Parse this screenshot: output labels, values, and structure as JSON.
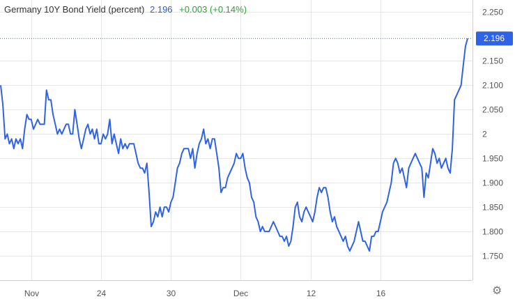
{
  "header": {
    "title": "Germany 10Y Bond Yield (percent)",
    "last_value": "2.196",
    "change": "+0.003 (+0.14%)"
  },
  "colors": {
    "line": "#2f63e6",
    "up": "#2ea03a",
    "grid": "#e6e6e6",
    "axis_text": "#555555",
    "badge_bg": "#2f63e6"
  },
  "icons": {
    "settings": "gear-icon"
  },
  "chart_data": {
    "type": "line",
    "title": "Germany 10Y Bond Yield (percent)",
    "xlabel": "",
    "ylabel": "",
    "ylim": [
      1.7,
      2.275
    ],
    "y_ticks": [
      1.75,
      1.8,
      1.85,
      1.9,
      1.95,
      2.0,
      2.05,
      2.1,
      2.15,
      2.25
    ],
    "y_tick_labels": [
      "1.750",
      "1.800",
      "1.850",
      "1.900",
      "1.950",
      "2",
      "2.050",
      "2.100",
      "2.150",
      "2.250"
    ],
    "x_ticks": [
      {
        "label": "Nov",
        "index": 14
      },
      {
        "label": "24",
        "index": 46
      },
      {
        "label": "30",
        "index": 78
      },
      {
        "label": "Dec",
        "index": 110
      },
      {
        "label": "12",
        "index": 142
      },
      {
        "label": "16",
        "index": 174
      }
    ],
    "last_value_label": "2.196",
    "last_value": 2.196,
    "grid": true,
    "series": [
      {
        "values": [
          2.1,
          2.06,
          1.99,
          2.0,
          1.98,
          1.99,
          1.97,
          1.99,
          1.98,
          1.99,
          1.97,
          2.01,
          2.04,
          2.03,
          2.03,
          2.01,
          2.02,
          2.03,
          2.02,
          2.02,
          2.02,
          2.09,
          2.07,
          2.07,
          2.04,
          2.02,
          2.0,
          2.01,
          2.0,
          2.01,
          2.02,
          2.02,
          2.0,
          2.0,
          2.05,
          2.02,
          1.99,
          1.97,
          1.99,
          2.01,
          2.02,
          2.0,
          2.01,
          1.99,
          2.01,
          1.98,
          1.98,
          2.0,
          1.99,
          2.0,
          2.03,
          1.98,
          2.0,
          1.98,
          1.96,
          1.99,
          1.97,
          1.98,
          1.97,
          1.98,
          1.98,
          1.98,
          1.96,
          1.94,
          1.93,
          1.93,
          1.92,
          1.94,
          1.88,
          1.81,
          1.82,
          1.84,
          1.83,
          1.85,
          1.83,
          1.85,
          1.85,
          1.84,
          1.86,
          1.87,
          1.9,
          1.93,
          1.94,
          1.96,
          1.97,
          1.97,
          1.97,
          1.95,
          1.97,
          1.93,
          1.96,
          1.98,
          1.99,
          2.01,
          1.98,
          1.99,
          1.97,
          1.99,
          1.99,
          1.96,
          1.93,
          1.88,
          1.89,
          1.89,
          1.91,
          1.92,
          1.93,
          1.94,
          1.96,
          1.95,
          1.95,
          1.96,
          1.93,
          1.91,
          1.9,
          1.87,
          1.86,
          1.83,
          1.82,
          1.8,
          1.81,
          1.8,
          1.8,
          1.8,
          1.81,
          1.82,
          1.81,
          1.8,
          1.79,
          1.79,
          1.78,
          1.79,
          1.77,
          1.78,
          1.81,
          1.85,
          1.86,
          1.83,
          1.82,
          1.84,
          1.85,
          1.84,
          1.83,
          1.82,
          1.84,
          1.87,
          1.89,
          1.88,
          1.89,
          1.89,
          1.87,
          1.84,
          1.82,
          1.83,
          1.81,
          1.8,
          1.79,
          1.78,
          1.79,
          1.77,
          1.76,
          1.77,
          1.78,
          1.8,
          1.82,
          1.8,
          1.78,
          1.78,
          1.77,
          1.76,
          1.79,
          1.79,
          1.8,
          1.8,
          1.82,
          1.84,
          1.85,
          1.86,
          1.88,
          1.9,
          1.94,
          1.95,
          1.94,
          1.92,
          1.93,
          1.91,
          1.89,
          1.93,
          1.94,
          1.95,
          1.96,
          1.95,
          1.94,
          1.93,
          1.87,
          1.92,
          1.91,
          1.94,
          1.97,
          1.96,
          1.94,
          1.95,
          1.93,
          1.94,
          1.95,
          1.93,
          1.92,
          1.97,
          2.07,
          2.08,
          2.09,
          2.1,
          2.14,
          2.18,
          2.196
        ]
      }
    ]
  }
}
